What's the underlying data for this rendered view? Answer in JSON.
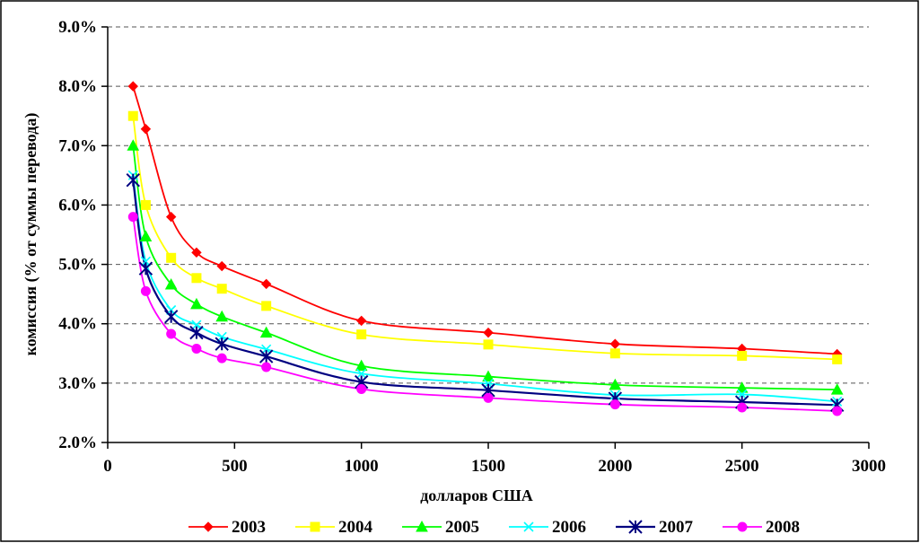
{
  "chart_data": {
    "type": "line",
    "xlabel": "долларов США",
    "ylabel": "комиссия (% от суммы перевода)",
    "xlim": [
      0,
      3000
    ],
    "ylim": [
      0.02,
      0.09
    ],
    "xticks": [
      0,
      500,
      1000,
      1500,
      2000,
      2500,
      3000
    ],
    "xtick_labels": [
      "0",
      "500",
      "1000",
      "1500",
      "2000",
      "2500",
      "3000"
    ],
    "yticks": [
      0.02,
      0.03,
      0.04,
      0.05,
      0.06,
      0.07,
      0.08,
      0.09
    ],
    "ytick_labels": [
      "2.0%",
      "3.0%",
      "4.0%",
      "5.0%",
      "6.0%",
      "7.0%",
      "8.0%",
      "9.0%"
    ],
    "grid": "horizontal-dashed",
    "legend_position": "bottom",
    "x": [
      100,
      150,
      250,
      350,
      450,
      625,
      1000,
      1500,
      2000,
      2500,
      2875
    ],
    "series": [
      {
        "name": "2003",
        "color": "#ff0000",
        "marker": "diamond",
        "values": [
          0.08,
          0.0728,
          0.058,
          0.052,
          0.0497,
          0.0467,
          0.0405,
          0.0385,
          0.0366,
          0.0358,
          0.0349
        ]
      },
      {
        "name": "2004",
        "color": "#ffff00",
        "marker": "square",
        "values": [
          0.075,
          0.06,
          0.0511,
          0.0477,
          0.0459,
          0.043,
          0.0382,
          0.0365,
          0.035,
          0.0346,
          0.034
        ]
      },
      {
        "name": "2005",
        "color": "#00ff00",
        "marker": "triangle",
        "values": [
          0.07,
          0.0547,
          0.0466,
          0.0433,
          0.0412,
          0.0385,
          0.0329,
          0.0311,
          0.0297,
          0.0292,
          0.0289
        ]
      },
      {
        "name": "2006",
        "color": "#00ffff",
        "marker": "x",
        "values": [
          0.065,
          0.0505,
          0.0423,
          0.0398,
          0.0378,
          0.0357,
          0.0316,
          0.0299,
          0.028,
          0.0281,
          0.0269
        ]
      },
      {
        "name": "2007",
        "color": "#000080",
        "marker": "star",
        "values": [
          0.0642,
          0.0493,
          0.0412,
          0.0385,
          0.0366,
          0.0345,
          0.0302,
          0.0288,
          0.0274,
          0.0268,
          0.0263
        ]
      },
      {
        "name": "2008",
        "color": "#ff00ff",
        "marker": "circle",
        "values": [
          0.058,
          0.0455,
          0.0383,
          0.0358,
          0.0342,
          0.0327,
          0.029,
          0.0275,
          0.0264,
          0.0259,
          0.0253
        ]
      }
    ]
  }
}
